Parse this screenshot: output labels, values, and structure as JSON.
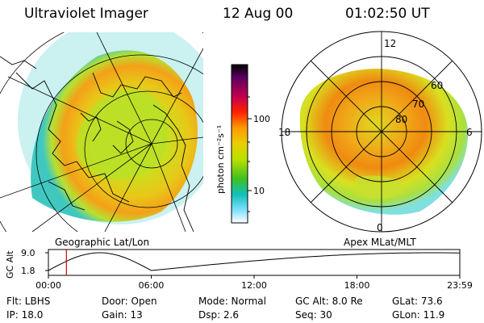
{
  "header": {
    "instrument": "Ultraviolet Imager",
    "date": "12 Aug 00",
    "time": "01:02:50 UT"
  },
  "colorbar": {
    "unit_label": "photon cm⁻²s⁻¹",
    "ticks": [
      {
        "label": "100",
        "value": 100
      },
      {
        "label": "10",
        "value": 10
      }
    ],
    "scale": "log",
    "colors": [
      "#000000",
      "#5a0060",
      "#c00050",
      "#ff2000",
      "#ff9a00",
      "#e8d000",
      "#b8e000",
      "#40c020",
      "#10c0b8",
      "#80e0ff",
      "#ffffff"
    ]
  },
  "left_image": {
    "caption": "Geographic Lat/Lon"
  },
  "right_image": {
    "caption": "Apex MLat/MLT",
    "mlt_labels": [
      "12",
      "18",
      "6",
      "0"
    ],
    "lat_labels": [
      "60",
      "70",
      "80"
    ]
  },
  "altitude_plot": {
    "ylabel": "GC Alt",
    "y_ticks": [
      "9.0",
      "1.8"
    ],
    "x_ticks": [
      "00:00",
      "06:00",
      "12:00",
      "18:00",
      "23:59"
    ],
    "current_time_hours": 1.05,
    "marker_color": "#d00000"
  },
  "info": {
    "flt": "Flt: LBHS",
    "door": "Door: Open",
    "mode": "Mode: Normal",
    "gc_alt": "GC Alt: 8.0 Re",
    "glat": "GLat:  73.6",
    "ip": "IP: 18.0",
    "gain": "Gain: 13",
    "dsp": "Dsp:    2.6",
    "seq": "Seq: 30",
    "glon": "GLon:  11.9"
  }
}
